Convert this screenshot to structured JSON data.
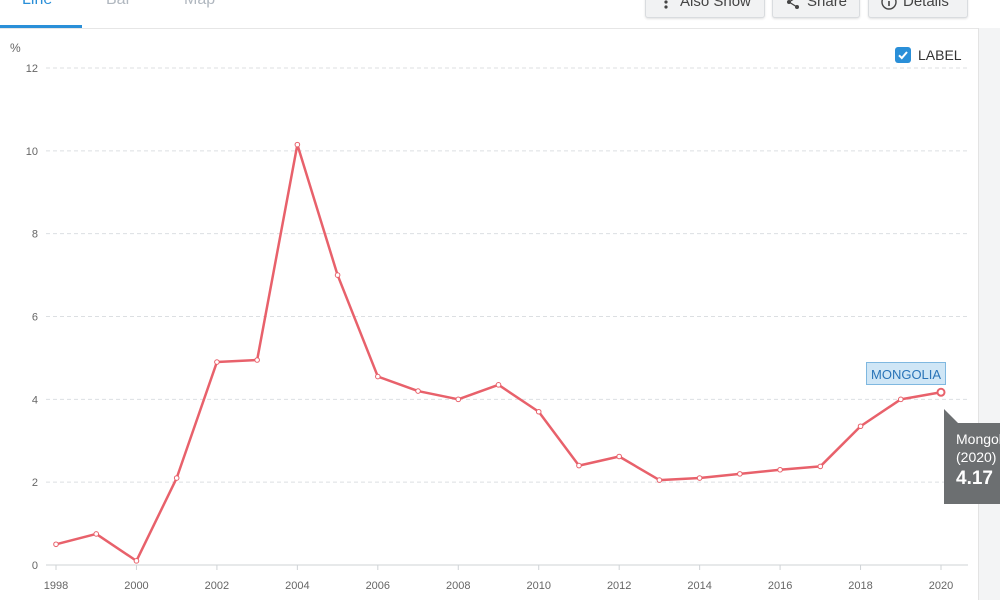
{
  "tabs": [
    {
      "label": "Line",
      "active": true
    },
    {
      "label": "Bar",
      "active": false
    },
    {
      "label": "Map",
      "active": false
    }
  ],
  "toolbar": {
    "also_show": "Also Show",
    "share": "Share",
    "details": "Details"
  },
  "label_toggle": {
    "text": "LABEL",
    "checked": true
  },
  "tooltip": {
    "name": "Mongolia",
    "year": "(2020)",
    "value": "4.17"
  },
  "colors": {
    "line": "#e8616b",
    "accent": "#2a8fd8",
    "tooltip_bg": "#6c6f71"
  },
  "chart_data": {
    "type": "line",
    "ylabel": "%",
    "ylim": [
      0,
      12
    ],
    "yticks": [
      0,
      2,
      4,
      6,
      8,
      10,
      12
    ],
    "xlim": [
      1998,
      2020
    ],
    "xticks": [
      1998,
      2000,
      2002,
      2004,
      2006,
      2008,
      2010,
      2012,
      2014,
      2016,
      2018,
      2020
    ],
    "grid": true,
    "series": [
      {
        "name": "MONGOLIA",
        "x": [
          1998,
          1999,
          2000,
          2001,
          2002,
          2003,
          2004,
          2005,
          2006,
          2007,
          2008,
          2009,
          2010,
          2011,
          2012,
          2013,
          2014,
          2015,
          2016,
          2017,
          2018,
          2019,
          2020
        ],
        "y": [
          0.5,
          0.75,
          0.1,
          2.1,
          4.9,
          4.95,
          10.15,
          7.0,
          4.55,
          4.2,
          4.0,
          4.35,
          3.7,
          2.4,
          2.62,
          2.05,
          2.1,
          2.2,
          2.3,
          2.38,
          3.35,
          4.0,
          4.17
        ]
      }
    ]
  }
}
